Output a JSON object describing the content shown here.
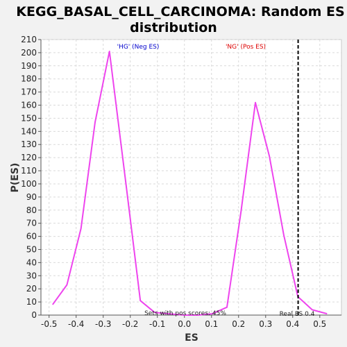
{
  "chart_data": {
    "type": "line",
    "title_lines": [
      "KEGG_BASAL_CELL_CARCINOMA: Random ES",
      "distribution"
    ],
    "xlabel": "ES",
    "ylabel": "P(ES)",
    "xlim": [
      -0.53,
      0.58
    ],
    "ylim": [
      0,
      210
    ],
    "xticks": [
      -0.5,
      -0.4,
      -0.3,
      -0.2,
      -0.1,
      0.0,
      0.1,
      0.2,
      0.3,
      0.4,
      0.5
    ],
    "xtick_labels": [
      "-0.5",
      "-0.4",
      "-0.3",
      "-0.2",
      "-0.1",
      "0.0",
      "0.1",
      "0.2",
      "0.3",
      "0.4",
      "0.5"
    ],
    "yticks": [
      0,
      10,
      20,
      30,
      40,
      50,
      60,
      70,
      80,
      90,
      100,
      110,
      120,
      130,
      140,
      150,
      160,
      170,
      180,
      190,
      200,
      210
    ],
    "grid": true,
    "series": [
      {
        "color": "#ee44ee",
        "x": [
          -0.487,
          -0.434,
          -0.382,
          -0.33,
          -0.277,
          -0.216,
          -0.163,
          -0.11,
          -0.058,
          0.0,
          0.05,
          0.103,
          0.157,
          0.209,
          0.262,
          0.314,
          0.367,
          0.419,
          0.472,
          0.527
        ],
        "y": [
          8,
          23,
          66,
          147,
          201,
          100,
          11,
          2,
          1,
          0,
          0,
          1,
          6,
          79,
          162,
          121,
          61,
          14,
          4,
          1
        ]
      }
    ],
    "real_es": 0.42,
    "annotations": {
      "neg_label": "'HG' (Neg ES)",
      "pos_label": "'NG' (Pos ES)",
      "sets_text": "Sets with pos scores: 45%",
      "real_es_text": "Real ES 0.4"
    },
    "colors": {
      "neg": "#0000cc",
      "pos": "#dd0000",
      "real_es_line": "#000000"
    }
  }
}
